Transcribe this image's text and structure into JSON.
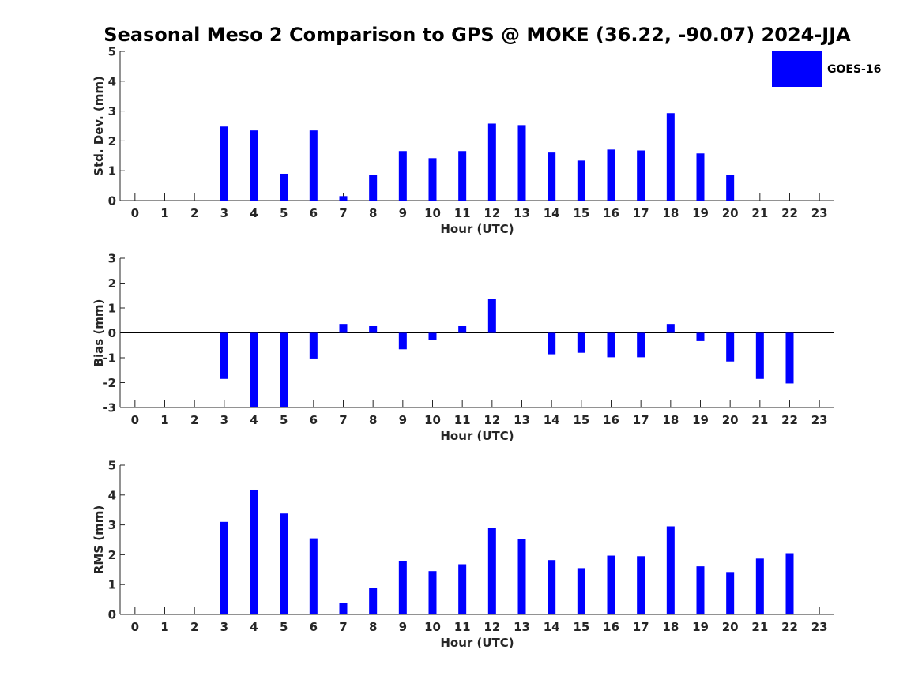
{
  "title": "Seasonal Meso 2 Comparison to GPS @ MOKE (36.22, -90.07) 2024-JJA",
  "legend": {
    "label": "GOES-16",
    "color": "#0000ff"
  },
  "chart_data": [
    {
      "type": "bar",
      "title": "",
      "xlabel": "Hour (UTC)",
      "ylabel": "Std. Dev. (mm)",
      "categories": [
        "0",
        "1",
        "2",
        "3",
        "4",
        "5",
        "6",
        "7",
        "8",
        "9",
        "10",
        "11",
        "12",
        "13",
        "14",
        "15",
        "16",
        "17",
        "18",
        "19",
        "20",
        "21",
        "22",
        "23"
      ],
      "ylim": [
        0,
        5
      ],
      "yticks": [
        "0",
        "1",
        "2",
        "3",
        "4",
        "5"
      ],
      "series": [
        {
          "name": "GOES-16",
          "color": "#0000ff",
          "values": [
            null,
            null,
            null,
            2.48,
            2.35,
            0.9,
            2.35,
            0.15,
            0.85,
            1.66,
            1.42,
            1.66,
            2.58,
            2.53,
            1.61,
            1.34,
            1.71,
            1.68,
            2.93,
            1.58,
            0.85,
            null,
            null,
            null
          ]
        }
      ]
    },
    {
      "type": "bar",
      "title": "",
      "xlabel": "Hour (UTC)",
      "ylabel": "Bias (mm)",
      "categories": [
        "0",
        "1",
        "2",
        "3",
        "4",
        "5",
        "6",
        "7",
        "8",
        "9",
        "10",
        "11",
        "12",
        "13",
        "14",
        "15",
        "16",
        "17",
        "18",
        "19",
        "20",
        "21",
        "22",
        "23"
      ],
      "ylim": [
        -3,
        3
      ],
      "yticks": [
        "-3",
        "-2",
        "-1",
        "0",
        "1",
        "2",
        "3"
      ],
      "series": [
        {
          "name": "GOES-16",
          "color": "#0000ff",
          "values": [
            null,
            null,
            null,
            -1.85,
            -3.0,
            -3.0,
            -1.03,
            0.36,
            0.27,
            -0.66,
            -0.29,
            0.27,
            1.35,
            null,
            -0.86,
            -0.8,
            -0.98,
            -0.98,
            0.36,
            -0.33,
            -1.15,
            -1.85,
            -2.03,
            null
          ]
        }
      ]
    },
    {
      "type": "bar",
      "title": "",
      "xlabel": "Hour (UTC)",
      "ylabel": "RMS (mm)",
      "categories": [
        "0",
        "1",
        "2",
        "3",
        "4",
        "5",
        "6",
        "7",
        "8",
        "9",
        "10",
        "11",
        "12",
        "13",
        "14",
        "15",
        "16",
        "17",
        "18",
        "19",
        "20",
        "21",
        "22",
        "23"
      ],
      "ylim": [
        0,
        5
      ],
      "yticks": [
        "0",
        "1",
        "2",
        "3",
        "4",
        "5"
      ],
      "series": [
        {
          "name": "GOES-16",
          "color": "#0000ff",
          "values": [
            null,
            null,
            null,
            3.1,
            4.18,
            3.38,
            2.55,
            0.38,
            0.89,
            1.79,
            1.45,
            1.68,
            2.9,
            2.53,
            1.82,
            1.55,
            1.97,
            1.95,
            2.95,
            1.61,
            1.42,
            1.87,
            2.05,
            null
          ]
        }
      ]
    }
  ]
}
